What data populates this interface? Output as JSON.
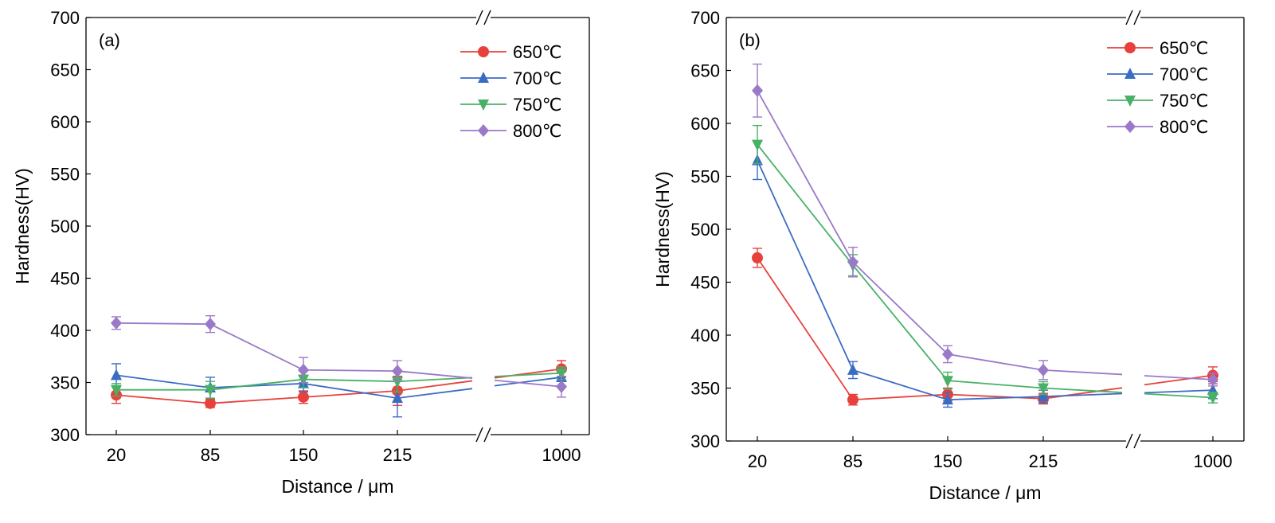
{
  "chart_data": [
    {
      "type": "line",
      "panel_label": "(a)",
      "xlabel": "Distance / μm",
      "ylabel": "Hardness(HV)",
      "ylim": [
        300,
        700
      ],
      "yticks": [
        300,
        350,
        400,
        450,
        500,
        550,
        600,
        650,
        700
      ],
      "categories": [
        "20",
        "85",
        "150",
        "215",
        "1000"
      ],
      "axis_break": "between 215 and 1000",
      "grid": false,
      "legend_position": "top-right",
      "series": [
        {
          "name": "650℃",
          "marker": "circle",
          "color": "#e8413b",
          "values": [
            338,
            330,
            336,
            342,
            363
          ],
          "errors": [
            8,
            4,
            6,
            14,
            8
          ]
        },
        {
          "name": "700℃",
          "marker": "triangle-up",
          "color": "#3b6cc4",
          "values": [
            357,
            345,
            349,
            335,
            355
          ],
          "errors": [
            11,
            10,
            8,
            18,
            8
          ]
        },
        {
          "name": "750℃",
          "marker": "triangle-down",
          "color": "#49b166",
          "values": [
            343,
            343,
            353,
            351,
            359
          ],
          "errors": [
            6,
            8,
            8,
            10,
            6
          ]
        },
        {
          "name": "800℃",
          "marker": "diamond",
          "color": "#9a79c8",
          "values": [
            407,
            406,
            362,
            361,
            346
          ],
          "errors": [
            6,
            8,
            12,
            10,
            10
          ]
        }
      ]
    },
    {
      "type": "line",
      "panel_label": "(b)",
      "xlabel": "Distance / μm",
      "ylabel": "Hardness(HV)",
      "ylim": [
        300,
        700
      ],
      "yticks": [
        300,
        350,
        400,
        450,
        500,
        550,
        600,
        650,
        700
      ],
      "categories": [
        "20",
        "85",
        "150",
        "215",
        "1000"
      ],
      "axis_break": "between 215 and 1000",
      "grid": false,
      "legend_position": "top-right",
      "series": [
        {
          "name": "650℃",
          "marker": "circle",
          "color": "#e8413b",
          "values": [
            473,
            339,
            344,
            340,
            362
          ],
          "errors": [
            9,
            5,
            6,
            5,
            8
          ]
        },
        {
          "name": "700℃",
          "marker": "triangle-up",
          "color": "#3b6cc4",
          "values": [
            565,
            367,
            339,
            342,
            348
          ],
          "errors": [
            18,
            8,
            7,
            6,
            8
          ]
        },
        {
          "name": "750℃",
          "marker": "triangle-down",
          "color": "#49b166",
          "values": [
            580,
            466,
            357,
            350,
            341
          ],
          "errors": [
            18,
            10,
            8,
            6,
            5
          ]
        },
        {
          "name": "800℃",
          "marker": "diamond",
          "color": "#9a79c8",
          "values": [
            631,
            469,
            382,
            367,
            358
          ],
          "errors": [
            25,
            14,
            8,
            9,
            6
          ]
        }
      ]
    }
  ]
}
